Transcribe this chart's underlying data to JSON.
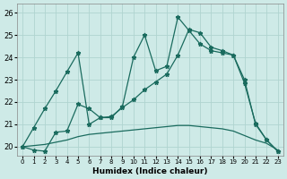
{
  "xlabel": "Humidex (Indice chaleur)",
  "background_color": "#ceeae7",
  "grid_color": "#b0d4d0",
  "line_color": "#1a6b5e",
  "xlim": [
    -0.5,
    23.5
  ],
  "ylim": [
    19.6,
    26.4
  ],
  "yticks": [
    20,
    21,
    22,
    23,
    24,
    25,
    26
  ],
  "xticks": [
    0,
    1,
    2,
    3,
    4,
    5,
    6,
    7,
    8,
    9,
    10,
    11,
    12,
    13,
    14,
    15,
    16,
    17,
    18,
    19,
    20,
    21,
    22,
    23
  ],
  "series1_x": [
    0,
    1,
    2,
    3,
    4,
    5,
    6,
    7,
    8,
    9,
    10,
    11,
    12,
    13,
    14,
    15,
    16,
    17,
    18,
    19,
    20,
    21,
    22,
    23
  ],
  "series1_y": [
    20.0,
    20.85,
    21.7,
    22.5,
    23.35,
    24.2,
    21.0,
    21.3,
    21.3,
    21.8,
    24.0,
    25.0,
    23.4,
    23.6,
    25.8,
    25.2,
    24.6,
    24.3,
    24.2,
    24.1,
    23.0,
    21.0,
    20.3,
    19.8
  ],
  "series2_x": [
    0,
    1,
    2,
    3,
    4,
    5,
    6,
    7,
    8,
    9,
    10,
    11,
    12,
    13,
    14,
    15,
    16,
    17,
    18,
    19,
    20,
    21,
    22,
    23
  ],
  "series2_y": [
    20.0,
    19.85,
    19.8,
    20.65,
    20.7,
    21.9,
    21.7,
    21.3,
    21.35,
    21.75,
    22.1,
    22.55,
    22.9,
    23.25,
    24.1,
    25.25,
    25.1,
    24.45,
    24.3,
    24.1,
    22.85,
    21.05,
    20.3,
    19.8
  ],
  "series3_x": [
    0,
    1,
    2,
    3,
    4,
    5,
    6,
    7,
    8,
    9,
    10,
    11,
    12,
    13,
    14,
    15,
    16,
    17,
    18,
    19,
    20,
    21,
    22,
    23
  ],
  "series3_y": [
    20.0,
    20.05,
    20.1,
    20.2,
    20.3,
    20.45,
    20.55,
    20.6,
    20.65,
    20.7,
    20.75,
    20.8,
    20.85,
    20.9,
    20.95,
    20.95,
    20.9,
    20.85,
    20.8,
    20.7,
    20.5,
    20.3,
    20.15,
    19.85
  ],
  "linewidth": 0.9,
  "markersize": 3.5
}
